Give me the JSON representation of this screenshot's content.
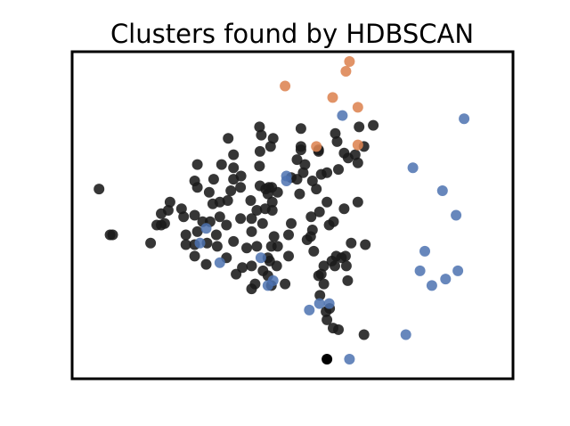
{
  "chart_data": {
    "type": "scatter",
    "title": "Clusters found by HDBSCAN",
    "xlabel": "",
    "ylabel": "",
    "xlim": [
      0,
      100
    ],
    "ylim": [
      0,
      100
    ],
    "grid": false,
    "axes_ticks": false,
    "series": [
      {
        "color": "#1a1a1a",
        "opacity": 0.88,
        "points": [
          [
            6.1,
            58
          ],
          [
            9.2,
            44
          ],
          [
            8.6,
            44
          ],
          [
            17.8,
            41.5
          ],
          [
            19.2,
            47
          ],
          [
            20.2,
            47
          ],
          [
            21.0,
            47.5
          ],
          [
            20.2,
            50.5
          ],
          [
            21.8,
            51.5
          ],
          [
            22.2,
            54
          ],
          [
            25.3,
            49.5
          ],
          [
            24.8,
            52
          ],
          [
            25.8,
            44
          ],
          [
            25.8,
            41
          ],
          [
            27.8,
            37.5
          ],
          [
            27.8,
            41
          ],
          [
            28.4,
            45
          ],
          [
            27.8,
            50
          ],
          [
            28.4,
            58.5
          ],
          [
            27.8,
            60.5
          ],
          [
            28.4,
            65.5
          ],
          [
            29.6,
            48
          ],
          [
            30.4,
            35
          ],
          [
            30.6,
            41.5
          ],
          [
            31.3,
            48
          ],
          [
            31.9,
            53.5
          ],
          [
            31.1,
            57
          ],
          [
            32.1,
            61
          ],
          [
            32.7,
            44
          ],
          [
            32.9,
            40.5
          ],
          [
            33.5,
            49.5
          ],
          [
            33.5,
            54
          ],
          [
            33.9,
            65.5
          ],
          [
            35,
            47
          ],
          [
            35,
            37
          ],
          [
            35.3,
            54.5
          ],
          [
            36,
            57.5
          ],
          [
            36.6,
            42
          ],
          [
            35.4,
            73.5
          ],
          [
            36.6,
            61
          ],
          [
            36.6,
            64.5
          ],
          [
            37.2,
            32
          ],
          [
            36.6,
            68.5
          ],
          [
            38.2,
            58.5
          ],
          [
            38.2,
            49
          ],
          [
            38.6,
            34
          ],
          [
            38.3,
            62
          ],
          [
            39.6,
            40
          ],
          [
            40.5,
            54.5
          ],
          [
            40.7,
            49
          ],
          [
            40.7,
            45
          ],
          [
            40.7,
            34.5
          ],
          [
            40.7,
            27.5
          ],
          [
            41.5,
            29
          ],
          [
            41.9,
            40.5
          ],
          [
            41.9,
            51.5
          ],
          [
            42.6,
            59
          ],
          [
            43.3,
            33
          ],
          [
            44.4,
            31.5
          ],
          [
            44.4,
            37
          ],
          [
            44.8,
            36
          ],
          [
            45.2,
            28.5
          ],
          [
            45.2,
            40.5
          ],
          [
            45.4,
            54
          ],
          [
            42.5,
            65
          ],
          [
            42.6,
            69.5
          ],
          [
            42.9,
            74.5
          ],
          [
            42.5,
            77
          ],
          [
            43.2,
            47.5
          ],
          [
            44.4,
            56.5
          ],
          [
            43.9,
            58
          ],
          [
            44.6,
            58.5
          ],
          [
            43.8,
            52
          ],
          [
            45.3,
            58.5
          ],
          [
            45.4,
            51.5
          ],
          [
            46.6,
            57
          ],
          [
            45.6,
            73.5
          ],
          [
            45.0,
            71
          ],
          [
            45.8,
            43.5
          ],
          [
            46.4,
            34.5
          ],
          [
            46.6,
            40.5
          ],
          [
            48.3,
            29
          ],
          [
            49.1,
            37.5
          ],
          [
            49.1,
            44
          ],
          [
            49.7,
            47.5
          ],
          [
            49.7,
            61.5
          ],
          [
            51.0,
            67
          ],
          [
            51.0,
            61
          ],
          [
            52.4,
            63
          ],
          [
            51.9,
            76.5
          ],
          [
            51.9,
            71
          ],
          [
            51.6,
            56.5
          ],
          [
            51.9,
            70
          ],
          [
            52.8,
            65.5
          ],
          [
            53.3,
            42.5
          ],
          [
            54.1,
            43.5
          ],
          [
            54.5,
            45.5
          ],
          [
            54.5,
            60.5
          ],
          [
            55.4,
            58
          ],
          [
            55.9,
            70
          ],
          [
            54.2,
            49.5
          ],
          [
            55.9,
            69.5
          ],
          [
            56.5,
            62.5
          ],
          [
            56.1,
            51
          ],
          [
            54.8,
            39
          ],
          [
            55.9,
            31.5
          ],
          [
            56.5,
            32
          ],
          [
            57.1,
            34.5
          ],
          [
            56.2,
            25.5
          ],
          [
            57.1,
            29
          ],
          [
            57.8,
            63
          ],
          [
            57.8,
            54
          ],
          [
            58.3,
            47
          ],
          [
            58.9,
            36
          ],
          [
            59.6,
            34.5
          ],
          [
            59.7,
            75
          ],
          [
            58.4,
            21.5
          ],
          [
            59.3,
            48
          ],
          [
            60.1,
            72.5
          ],
          [
            60.4,
            64
          ],
          [
            59.9,
            37.5
          ],
          [
            61.1,
            37
          ],
          [
            61.7,
            69
          ],
          [
            61.7,
            52
          ],
          [
            62.5,
            30
          ],
          [
            62.6,
            67.5
          ],
          [
            63.3,
            41.5
          ],
          [
            64.8,
            54
          ],
          [
            64.2,
            68.5
          ],
          [
            64.8,
            66
          ],
          [
            65.1,
            77
          ],
          [
            66.2,
            71
          ],
          [
            66.5,
            41
          ],
          [
            68.3,
            77.5
          ],
          [
            66.2,
            13.5
          ],
          [
            62.2,
            34.5
          ],
          [
            59.2,
            15.5
          ],
          [
            57.8,
            18
          ],
          [
            62.0,
            37.5
          ],
          [
            57.6,
            20.5
          ],
          [
            60.4,
            15
          ]
        ]
      },
      {
        "color": "#000000",
        "opacity": 1,
        "points": [
          [
            57.8,
            6
          ]
        ]
      },
      {
        "color": "#dd8452",
        "opacity": 0.88,
        "points": [
          [
            48.3,
            89.5
          ],
          [
            62.1,
            94
          ],
          [
            62.9,
            97
          ],
          [
            59.1,
            86
          ],
          [
            64.8,
            83
          ],
          [
            64.8,
            71.5
          ],
          [
            55.4,
            71
          ]
        ]
      },
      {
        "color": "#4c72b0",
        "opacity": 0.85,
        "points": [
          [
            61.3,
            80.5
          ],
          [
            48.6,
            60.5
          ],
          [
            48.6,
            62
          ],
          [
            30.4,
            46
          ],
          [
            29.0,
            41.5
          ],
          [
            33.5,
            35.5
          ],
          [
            42.8,
            37
          ],
          [
            45.6,
            30
          ],
          [
            44.4,
            28.5
          ],
          [
            53.8,
            21
          ],
          [
            56.1,
            23
          ],
          [
            58.3,
            23
          ],
          [
            62.9,
            6
          ],
          [
            75.7,
            13.5
          ],
          [
            77.3,
            64.5
          ],
          [
            84.0,
            57.5
          ],
          [
            88.9,
            79.5
          ],
          [
            87.1,
            50
          ],
          [
            80.0,
            39
          ],
          [
            78.9,
            33
          ],
          [
            81.6,
            28.5
          ],
          [
            84.7,
            30.5
          ],
          [
            87.5,
            33
          ]
        ]
      }
    ]
  }
}
